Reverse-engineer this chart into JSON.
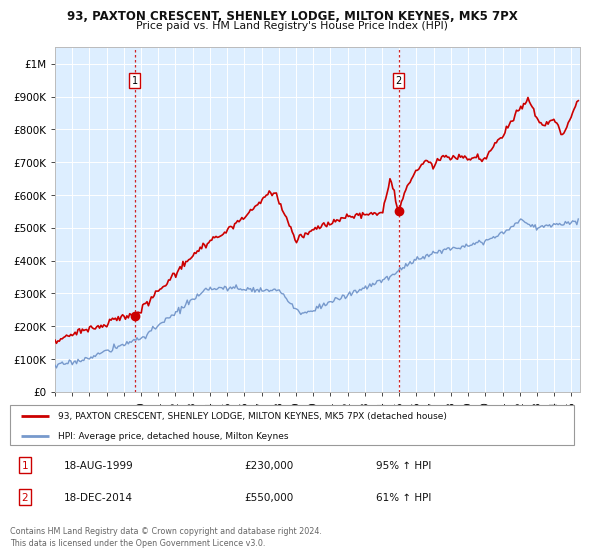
{
  "title": "93, PAXTON CRESCENT, SHENLEY LODGE, MILTON KEYNES, MK5 7PX",
  "subtitle": "Price paid vs. HM Land Registry's House Price Index (HPI)",
  "background_color": "#ffffff",
  "plot_bg_color": "#ddeeff",
  "grid_color": "#ffffff",
  "red_line_color": "#cc0000",
  "blue_line_color": "#7799cc",
  "transaction1": {
    "date_num": 1999.63,
    "price": 230000,
    "label": "1",
    "date_str": "18-AUG-1999",
    "hpi_pct": "95% ↑ HPI"
  },
  "transaction2": {
    "date_num": 2014.96,
    "price": 550000,
    "label": "2",
    "date_str": "18-DEC-2014",
    "hpi_pct": "61% ↑ HPI"
  },
  "vline_color": "#cc0000",
  "legend_label1": "93, PAXTON CRESCENT, SHENLEY LODGE, MILTON KEYNES, MK5 7PX (detached house)",
  "legend_label2": "HPI: Average price, detached house, Milton Keynes",
  "footer_text": "Contains HM Land Registry data © Crown copyright and database right 2024.\nThis data is licensed under the Open Government Licence v3.0.",
  "ylim": [
    0,
    1050000
  ],
  "xlim_start": 1995.0,
  "xlim_end": 2025.5,
  "yticks": [
    0,
    100000,
    200000,
    300000,
    400000,
    500000,
    600000,
    700000,
    800000,
    900000,
    1000000
  ],
  "ytick_labels": [
    "£0",
    "£100K",
    "£200K",
    "£300K",
    "£400K",
    "£500K",
    "£600K",
    "£700K",
    "£800K",
    "£900K",
    "£1M"
  ],
  "xticks": [
    1995,
    1996,
    1997,
    1998,
    1999,
    2000,
    2001,
    2002,
    2003,
    2004,
    2005,
    2006,
    2007,
    2008,
    2009,
    2010,
    2011,
    2012,
    2013,
    2014,
    2015,
    2016,
    2017,
    2018,
    2019,
    2020,
    2021,
    2022,
    2023,
    2024,
    2025
  ]
}
